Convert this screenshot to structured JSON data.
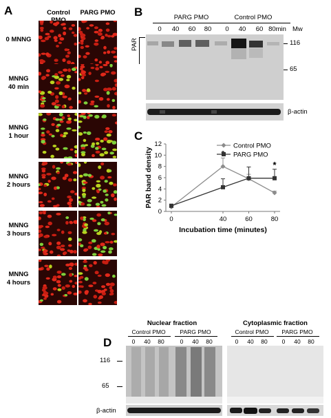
{
  "panelA": {
    "letter": "A",
    "col_headers": [
      "Control PMO",
      "PARG PMO"
    ],
    "rows": [
      [
        "0 MNNG"
      ],
      [
        "MNNG",
        "40 min"
      ],
      [
        "MNNG",
        "1 hour"
      ],
      [
        "MNNG",
        "2 hours"
      ],
      [
        "MNNG",
        "3 hours"
      ],
      [
        "MNNG",
        "4 hours"
      ]
    ]
  },
  "panelB": {
    "letter": "B",
    "groups": [
      "PARG PMO",
      "Control PMO"
    ],
    "lanes_parg": [
      "0",
      "40",
      "60",
      "80"
    ],
    "lanes_control": [
      "0",
      "40",
      "60",
      "80min"
    ],
    "mw_label": "Mw",
    "mw_marks": [
      "116",
      "65"
    ],
    "par_label": "PAR",
    "actin_label": "β-actin"
  },
  "panelC": {
    "letter": "C",
    "chart_data": {
      "type": "line",
      "xlabel": "Incubation time (minutes)",
      "ylabel": "PAR band density",
      "x": [
        0,
        40,
        60,
        80
      ],
      "xticks": [
        "0",
        "40",
        "60",
        "80"
      ],
      "yticks": [
        "0",
        "2",
        "4",
        "6",
        "8",
        "10",
        "12"
      ],
      "ylim": [
        0,
        12
      ],
      "legend_position": "top-right",
      "series": [
        {
          "name": "Control PMO",
          "values": [
            0.8,
            8.0,
            5.8,
            3.3
          ],
          "err": [
            0.3,
            1.5,
            0.8,
            0.3
          ],
          "color": "#8c8c8c",
          "marker": "diamond"
        },
        {
          "name": "PARG PMO",
          "values": [
            1.0,
            4.3,
            5.9,
            5.9
          ],
          "err": [
            0.3,
            1.5,
            2.0,
            1.6
          ],
          "color": "#333333",
          "marker": "square"
        }
      ],
      "annotations": [
        "*",
        "*"
      ]
    }
  },
  "panelD": {
    "letter": "D",
    "nuclear_title": "Nuclear fraction",
    "cyto_title": "Cytoplasmic fraction",
    "groups": [
      "Control PMO",
      "PARG PMO"
    ],
    "lanes": [
      "0",
      "40",
      "80"
    ],
    "mw_marks": [
      "116",
      "65"
    ],
    "actin_label": "β-actin"
  }
}
